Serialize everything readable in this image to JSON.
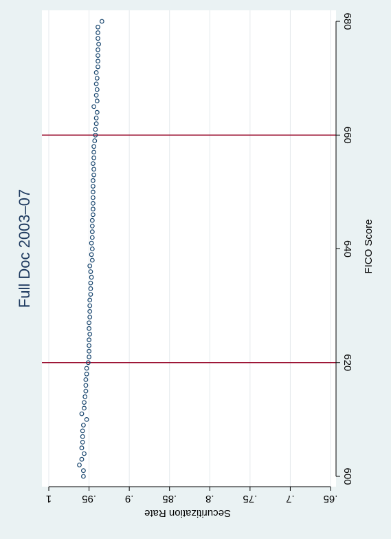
{
  "chart_data": {
    "type": "scatter",
    "title": "Full Doc 2003–07",
    "xlabel": "FICO Score",
    "ylabel": "Securitization Rate",
    "orientation": "rotated-90-clockwise",
    "x_ticks": [
      600,
      620,
      640,
      660,
      680
    ],
    "x_tick_labels": [
      "600",
      "620",
      "640",
      "660",
      "680"
    ],
    "y_ticks": [
      0.65,
      0.7,
      0.75,
      0.8,
      0.85,
      0.9,
      0.95,
      1
    ],
    "y_tick_labels": [
      ".65",
      ".7",
      ".75",
      ".8",
      ".85",
      ".9",
      ".95",
      "1"
    ],
    "xlim": [
      600,
      680
    ],
    "ylim": [
      0.65,
      1
    ],
    "grid": true,
    "legend": "none",
    "reference_lines_x": [
      620,
      660
    ],
    "colors": {
      "background": "#eaf2f3",
      "plot": "#ffffff",
      "title": "#1e3a5f",
      "marker": "#1a476f",
      "reference_line": "#990c2e",
      "grid": "#e4e9ec"
    },
    "series": [
      {
        "x": [
          600,
          601,
          602,
          603,
          604,
          605,
          606,
          607,
          608,
          609,
          610,
          611,
          612,
          613,
          614,
          615,
          616,
          617,
          618,
          619,
          620,
          621,
          622,
          623,
          624,
          625,
          626,
          627,
          628,
          629,
          630,
          631,
          632,
          633,
          634,
          635,
          636,
          637,
          638,
          639,
          640,
          641,
          642,
          643,
          644,
          645,
          646,
          647,
          648,
          649,
          650,
          651,
          652,
          653,
          654,
          655,
          656,
          657,
          658,
          659,
          660,
          661,
          662,
          663,
          664,
          665,
          666,
          667,
          668,
          669,
          670,
          671,
          672,
          673,
          674,
          675,
          676,
          677,
          678,
          679,
          680
        ],
        "y": [
          0.957,
          0.957,
          0.962,
          0.959,
          0.956,
          0.959,
          0.958,
          0.958,
          0.958,
          0.957,
          0.953,
          0.959,
          0.956,
          0.956,
          0.955,
          0.954,
          0.954,
          0.954,
          0.953,
          0.953,
          0.951,
          0.95,
          0.95,
          0.95,
          0.95,
          0.949,
          0.95,
          0.95,
          0.949,
          0.949,
          0.949,
          0.949,
          0.948,
          0.948,
          0.948,
          0.947,
          0.948,
          0.949,
          0.946,
          0.947,
          0.946,
          0.947,
          0.946,
          0.946,
          0.946,
          0.946,
          0.945,
          0.945,
          0.945,
          0.945,
          0.945,
          0.945,
          0.945,
          0.944,
          0.944,
          0.945,
          0.944,
          0.944,
          0.944,
          0.943,
          0.942,
          0.942,
          0.941,
          0.941,
          0.94,
          0.944,
          0.94,
          0.941,
          0.94,
          0.941,
          0.94,
          0.941,
          0.939,
          0.939,
          0.939,
          0.939,
          0.938,
          0.939,
          0.939,
          0.939,
          0.934
        ]
      }
    ]
  }
}
